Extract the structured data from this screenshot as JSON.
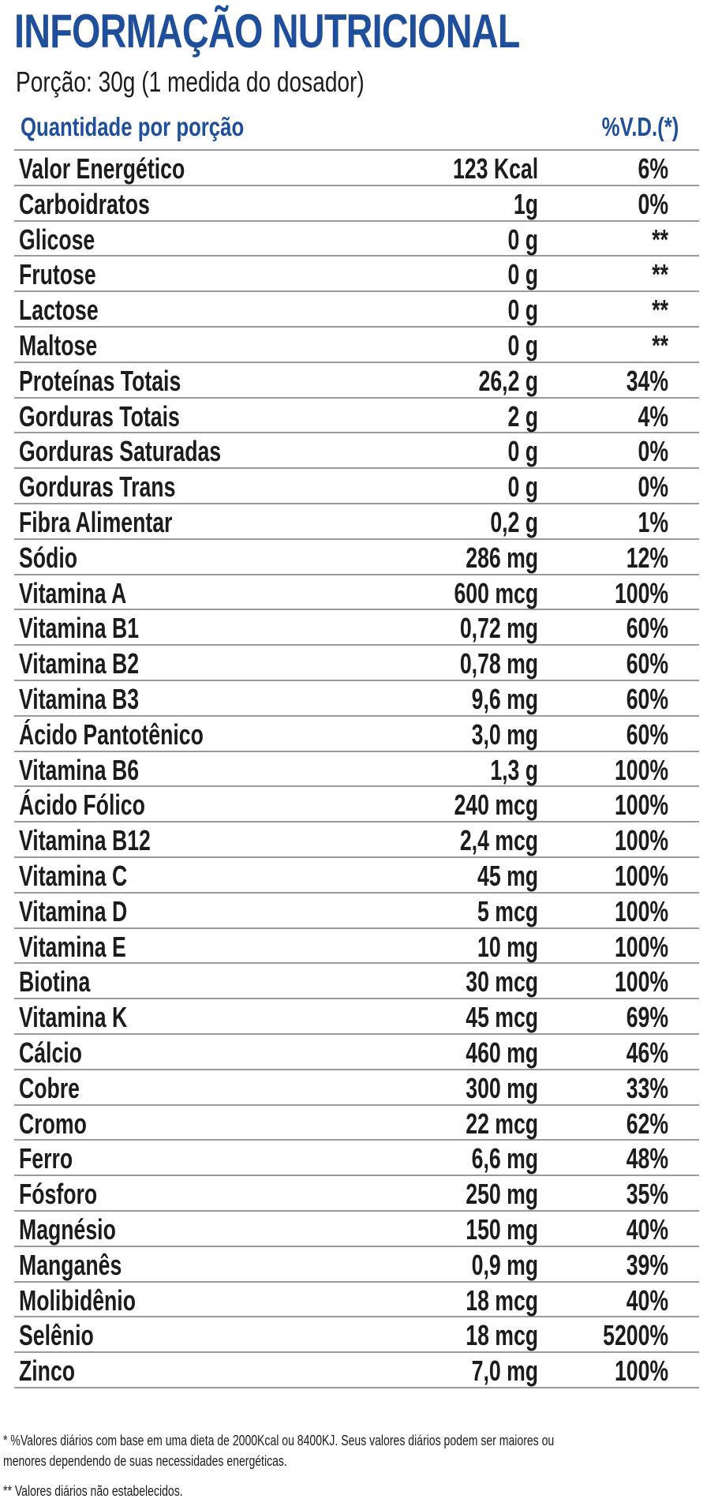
{
  "title": "INFORMAÇÃO NUTRICIONAL",
  "serving": "Porção: 30g (1 medida do dosador)",
  "header": {
    "quantity_label": "Quantidade por porção",
    "vd_label": "%V.D.(*)"
  },
  "rows": [
    {
      "name": "Valor Energético",
      "amount": "123 Kcal",
      "vd": "6%"
    },
    {
      "name": "Carboidratos",
      "amount": "1g",
      "vd": "0%"
    },
    {
      "name": "Glicose",
      "amount": "0 g",
      "vd": "**"
    },
    {
      "name": "Frutose",
      "amount": "0 g",
      "vd": "**"
    },
    {
      "name": "Lactose",
      "amount": "0 g",
      "vd": "**"
    },
    {
      "name": "Maltose",
      "amount": "0 g",
      "vd": "**"
    },
    {
      "name": "Proteínas Totais",
      "amount": "26,2 g",
      "vd": "34%"
    },
    {
      "name": "Gorduras Totais",
      "amount": "2 g",
      "vd": "4%"
    },
    {
      "name": "Gorduras Saturadas",
      "amount": "0 g",
      "vd": "0%"
    },
    {
      "name": "Gorduras Trans",
      "amount": "0 g",
      "vd": "0%"
    },
    {
      "name": "Fibra Alimentar",
      "amount": "0,2 g",
      "vd": "1%"
    },
    {
      "name": "Sódio",
      "amount": "286 mg",
      "vd": "12%"
    },
    {
      "name": "Vitamina A",
      "amount": "600 mcg",
      "vd": "100%"
    },
    {
      "name": "Vitamina B1",
      "amount": "0,72 mg",
      "vd": "60%"
    },
    {
      "name": "Vitamina B2",
      "amount": "0,78 mg",
      "vd": "60%"
    },
    {
      "name": "Vitamina B3",
      "amount": "9,6 mg",
      "vd": "60%"
    },
    {
      "name": "Ácido Pantotênico",
      "amount": "3,0 mg",
      "vd": "60%"
    },
    {
      "name": "Vitamina B6",
      "amount": "1,3 g",
      "vd": "100%"
    },
    {
      "name": "Ácido Fólico",
      "amount": "240 mcg",
      "vd": "100%"
    },
    {
      "name": "Vitamina B12",
      "amount": "2,4 mcg",
      "vd": "100%"
    },
    {
      "name": "Vitamina C",
      "amount": "45 mg",
      "vd": "100%"
    },
    {
      "name": "Vitamina D",
      "amount": "5 mcg",
      "vd": "100%"
    },
    {
      "name": "Vitamina E",
      "amount": "10 mg",
      "vd": "100%"
    },
    {
      "name": "Biotina",
      "amount": "30 mcg",
      "vd": "100%"
    },
    {
      "name": "Vitamina K",
      "amount": "45 mcg",
      "vd": "69%"
    },
    {
      "name": "Cálcio",
      "amount": "460 mg",
      "vd": "46%"
    },
    {
      "name": "Cobre",
      "amount": "300 mg",
      "vd": "33%"
    },
    {
      "name": "Cromo",
      "amount": "22 mcg",
      "vd": "62%"
    },
    {
      "name": "Ferro",
      "amount": "6,6 mg",
      "vd": "48%"
    },
    {
      "name": "Fósforo",
      "amount": "250 mg",
      "vd": "35%"
    },
    {
      "name": "Magnésio",
      "amount": "150 mg",
      "vd": "40%"
    },
    {
      "name": "Manganês",
      "amount": "0,9 mg",
      "vd": "39%"
    },
    {
      "name": "Molibidênio",
      "amount": "18 mcg",
      "vd": "40%"
    },
    {
      "name": "Selênio",
      "amount": "18 mcg",
      "vd": "5200%"
    },
    {
      "name": "Zinco",
      "amount": "7,0 mg",
      "vd": "100%"
    }
  ],
  "footnotes": {
    "line1": "* %Valores diários com base em uma dieta de 2000Kcal ou 8400KJ. Seus valores diários podem ser maiores ou",
    "line2": "menores dependendo de suas necessidades energéticas.",
    "line3": "** Valores diários não estabelecidos."
  },
  "colors": {
    "accent": "#1f4e9a",
    "text": "#1c1c1c",
    "rule": "#9a9a9a"
  }
}
